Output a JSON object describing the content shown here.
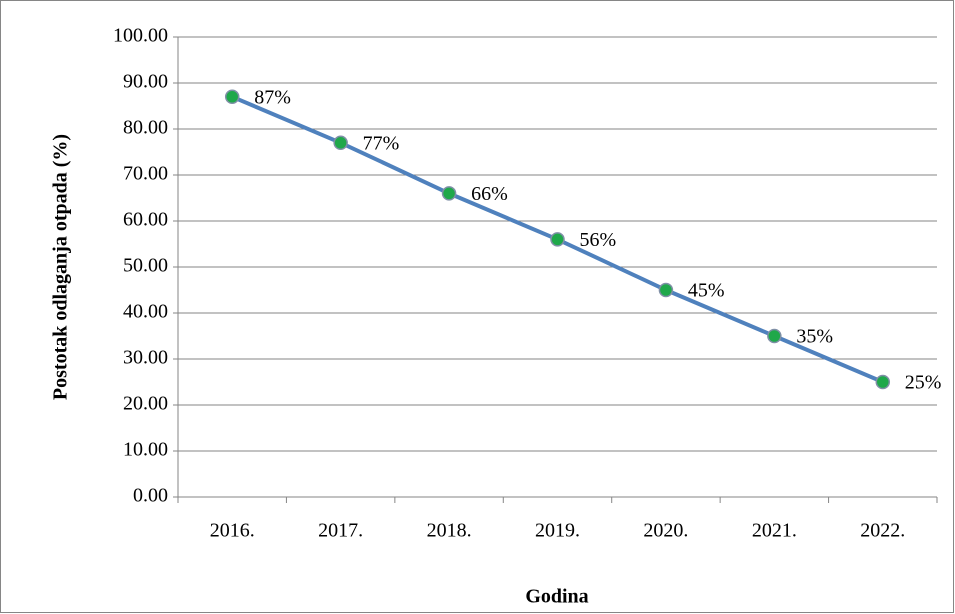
{
  "chart_data": {
    "type": "line",
    "x_label": "Godina",
    "y_label": "Postotak odlaganja otpada (%)",
    "categories": [
      "2016.",
      "2017.",
      "2018.",
      "2019.",
      "2020.",
      "2021.",
      "2022."
    ],
    "series": [
      {
        "color": "#4f81bd",
        "marker_color": "#1fa84a",
        "values": [
          87,
          77,
          66,
          56,
          45,
          35,
          25
        ],
        "value_labels": [
          "87%",
          "77%",
          "66%",
          "56%",
          "45%",
          "35%",
          "25%"
        ]
      }
    ],
    "ylim": [
      0,
      100
    ],
    "yticks": [
      {
        "value": 0,
        "label": "0.00"
      },
      {
        "value": 10,
        "label": "10.00"
      },
      {
        "value": 20,
        "label": "20.00"
      },
      {
        "value": 30,
        "label": "30.00"
      },
      {
        "value": 40,
        "label": "40.00"
      },
      {
        "value": 50,
        "label": "50.00"
      },
      {
        "value": 60,
        "label": "60.00"
      },
      {
        "value": 70,
        "label": "70.00"
      },
      {
        "value": 80,
        "label": "80.00"
      },
      {
        "value": 90,
        "label": "90.00"
      },
      {
        "value": 100,
        "label": "100.00"
      }
    ],
    "grid": true
  }
}
